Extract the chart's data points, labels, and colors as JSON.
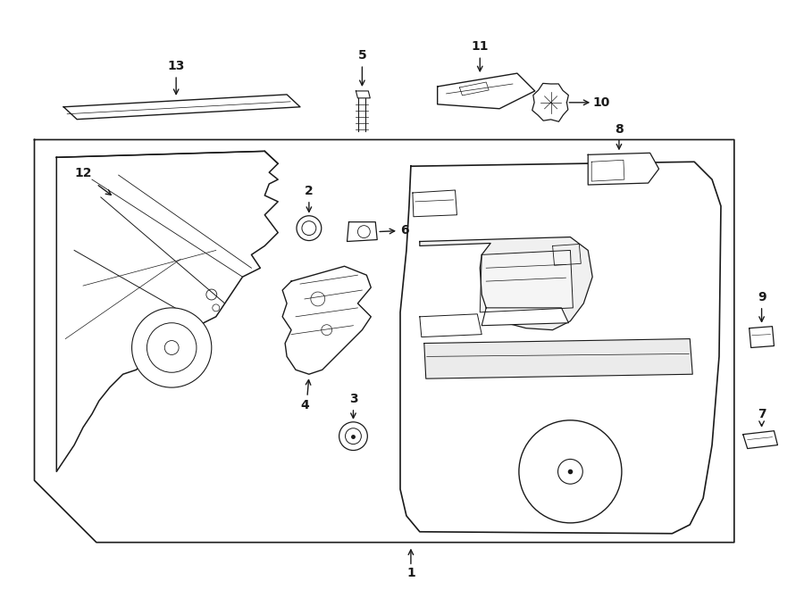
{
  "bg_color": "#ffffff",
  "line_color": "#1a1a1a",
  "fig_width": 9.0,
  "fig_height": 6.61,
  "lw": 1.0
}
